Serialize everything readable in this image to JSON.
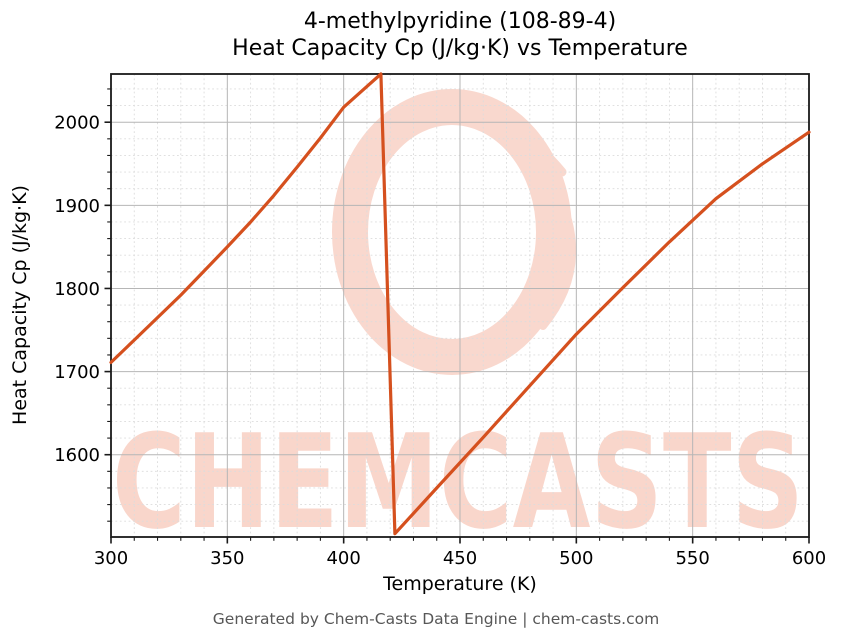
{
  "chart_data": {
    "type": "line",
    "title_lines": [
      "4-methylpyridine (108-89-4)",
      "Heat Capacity Cp (J/kg·K) vs Temperature"
    ],
    "xlabel": "Temperature (K)",
    "ylabel": "Heat Capacity Cp (J/kg·K)",
    "xlim": [
      300,
      600
    ],
    "ylim": [
      1501,
      2058
    ],
    "x_ticks": [
      300,
      350,
      400,
      450,
      500,
      550,
      600
    ],
    "y_ticks": [
      1600,
      1700,
      1800,
      1900,
      2000
    ],
    "x_minor_step": 10,
    "y_minor_step": 20,
    "grid": "major-solid-gray, minor-dashed-light",
    "legend": "none",
    "line_color": "#d5501e",
    "series": [
      {
        "name": "Heat Capacity Cp (J/kg·K)",
        "points": [
          [
            300,
            1711
          ],
          [
            310,
            1738
          ],
          [
            320,
            1765
          ],
          [
            330,
            1792
          ],
          [
            340,
            1821
          ],
          [
            350,
            1850
          ],
          [
            360,
            1880
          ],
          [
            370,
            1912
          ],
          [
            380,
            1946
          ],
          [
            390,
            1981
          ],
          [
            400,
            2018
          ],
          [
            408,
            2038
          ],
          [
            416,
            2058
          ],
          [
            422,
            1505
          ],
          [
            440,
            1560
          ],
          [
            460,
            1621
          ],
          [
            480,
            1683
          ],
          [
            500,
            1745
          ],
          [
            520,
            1801
          ],
          [
            540,
            1856
          ],
          [
            560,
            1908
          ],
          [
            580,
            1950
          ],
          [
            600,
            1988
          ]
        ]
      }
    ]
  },
  "watermark": {
    "text": "CHEMCASTS",
    "logo": "chemcasts-swirl-logo",
    "color": "#f9d6cb",
    "logo_color": "#f9d8ce"
  },
  "footer": {
    "text": "Generated by Chem-Casts Data Engine | chem-casts.com"
  }
}
